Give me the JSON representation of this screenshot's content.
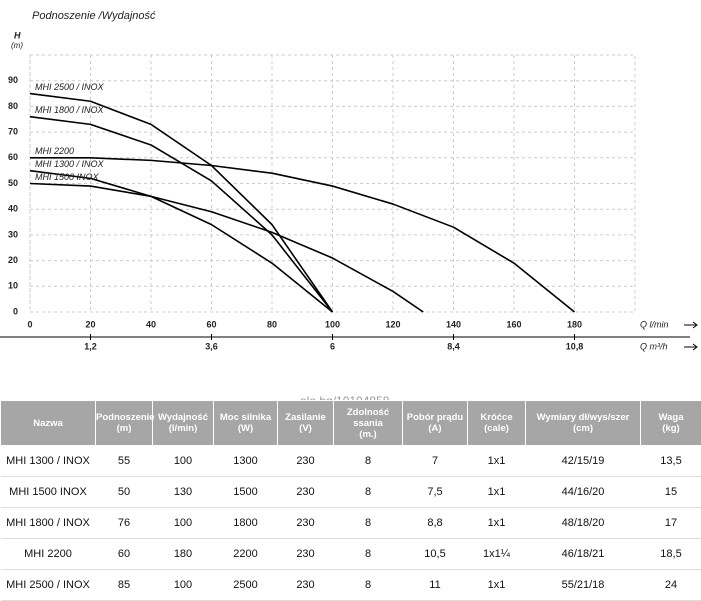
{
  "chart_data": {
    "type": "line",
    "title": "Podnoszenie /Wydajność",
    "y_label": "H",
    "y_unit": "(m)",
    "x_label": "Q l/min",
    "x2_label": "Q m³/h",
    "xlim": [
      0,
      200
    ],
    "ylim": [
      0,
      100
    ],
    "xticks": [
      0,
      20,
      40,
      60,
      80,
      100,
      120,
      140,
      160,
      180
    ],
    "yticks": [
      0,
      10,
      20,
      30,
      40,
      50,
      60,
      70,
      80,
      90
    ],
    "x2ticks": [
      {
        "value": 20,
        "label": "1,2"
      },
      {
        "value": 60,
        "label": "3,6"
      },
      {
        "value": 100,
        "label": "6"
      },
      {
        "value": 140,
        "label": "8,4"
      },
      {
        "value": 180,
        "label": "10,8"
      }
    ],
    "grid": true,
    "series": [
      {
        "name": "MHI 2500 / INOX",
        "color": "#000000",
        "x": [
          0,
          20,
          40,
          60,
          80,
          100
        ],
        "values": [
          85,
          82,
          73,
          57,
          34,
          0
        ]
      },
      {
        "name": "MHI 1800 / INOX",
        "color": "#000000",
        "x": [
          0,
          20,
          40,
          60,
          80,
          100
        ],
        "values": [
          76,
          73,
          65,
          51,
          30,
          0
        ]
      },
      {
        "name": "MHI 2200",
        "color": "#000000",
        "x": [
          0,
          20,
          40,
          60,
          80,
          100,
          120,
          140,
          160,
          180
        ],
        "values": [
          60,
          60,
          59,
          57,
          54,
          49,
          42,
          33,
          19,
          0
        ]
      },
      {
        "name": "MHI 1300 / INOX",
        "color": "#000000",
        "x": [
          0,
          20,
          40,
          60,
          80,
          100
        ],
        "values": [
          55,
          52,
          45,
          34,
          19,
          0
        ]
      },
      {
        "name": "MHI 1500 INOX",
        "color": "#000000",
        "x": [
          0,
          20,
          40,
          60,
          80,
          100,
          120,
          130
        ],
        "values": [
          50,
          49,
          45,
          39,
          31,
          21,
          8,
          0
        ]
      }
    ]
  },
  "watermark": "alo.bg/10104858",
  "table": {
    "header": [
      "Nazwa",
      "Podnoszenie\n(m)",
      "Wydajność\n(l/min)",
      "Moc silnika\n(W)",
      "Zasilanie\n(V)",
      "Zdolność ssania\n(m.)",
      "Pobór prądu\n(A)",
      "Króćce\n(cale)",
      "Wymiary dł/wys/szer\n(cm)",
      "Waga\n(kg)"
    ],
    "rows": [
      [
        "MHI 1300 / INOX",
        "55",
        "100",
        "1300",
        "230",
        "8",
        "7",
        "1x1",
        "42/15/19",
        "13,5"
      ],
      [
        "MHI 1500 INOX",
        "50",
        "130",
        "1500",
        "230",
        "8",
        "7,5",
        "1x1",
        "44/16/20",
        "15"
      ],
      [
        "MHI 1800 / INOX",
        "76",
        "100",
        "1800",
        "230",
        "8",
        "8,8",
        "1x1",
        "48/18/20",
        "17"
      ],
      [
        "MHI 2200",
        "60",
        "180",
        "2200",
        "230",
        "8",
        "10,5",
        "1x1¼",
        "46/18/21",
        "18,5"
      ],
      [
        "MHI 2500 / INOX",
        "85",
        "100",
        "2500",
        "230",
        "8",
        "11",
        "1x1",
        "55/21/18",
        "24"
      ]
    ]
  }
}
